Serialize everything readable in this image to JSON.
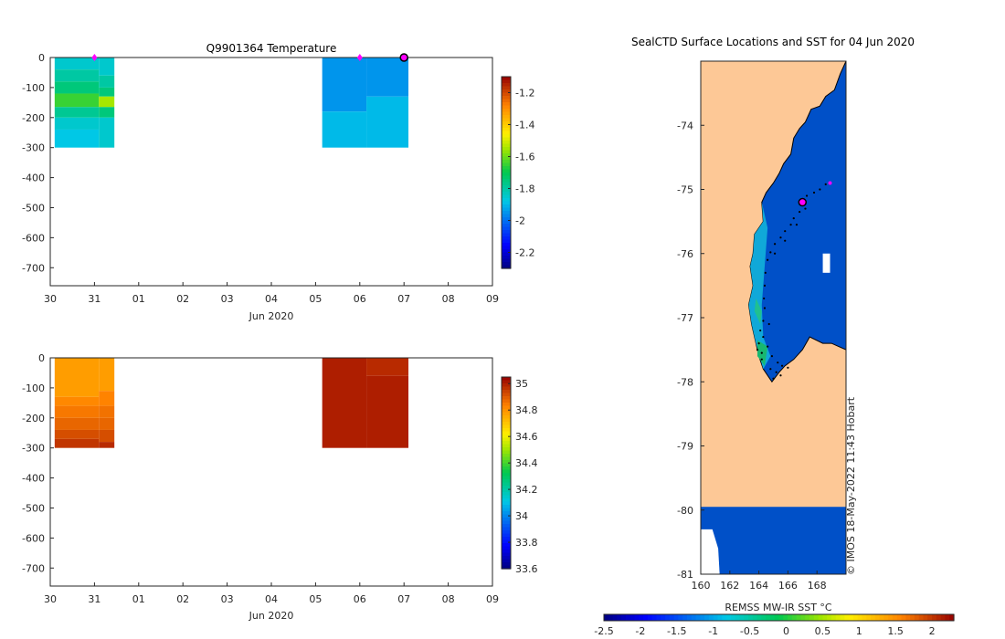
{
  "chart_data": [
    {
      "type": "heatmap",
      "title": "Q9901364  Temperature",
      "xlabel": "Jun 2020",
      "ylabel": "",
      "x_tick_labels": [
        "30",
        "31",
        "01",
        "02",
        "03",
        "04",
        "05",
        "06",
        "07",
        "08",
        "09"
      ],
      "x_range_days": [
        0,
        10
      ],
      "y_tick_labels": [
        "0",
        "-100",
        "-200",
        "-300",
        "-400",
        "-500",
        "-600",
        "-700"
      ],
      "ylim": [
        -760,
        0
      ],
      "colorbar": {
        "ticks": [
          "-1.2",
          "-1.4",
          "-1.6",
          "-1.8",
          "-2",
          "-2.2"
        ],
        "range": [
          -2.3,
          -1.1
        ]
      },
      "profiles": [
        {
          "x_start": 0.1,
          "x_end": 1.1,
          "layers": [
            [
              0,
              -40,
              -1.85
            ],
            [
              -40,
              -80,
              -1.8
            ],
            [
              -80,
              -120,
              -1.75
            ],
            [
              -120,
              -165,
              -1.65
            ],
            [
              -165,
              -200,
              -1.78
            ],
            [
              -200,
              -240,
              -1.85
            ],
            [
              -240,
              -300,
              -1.88
            ]
          ]
        },
        {
          "x_start": 1.1,
          "x_end": 1.45,
          "layers": [
            [
              0,
              -60,
              -1.85
            ],
            [
              -60,
              -100,
              -1.8
            ],
            [
              -100,
              -130,
              -1.75
            ],
            [
              -130,
              -165,
              -1.55
            ],
            [
              -165,
              -200,
              -1.75
            ],
            [
              -200,
              -300,
              -1.85
            ]
          ]
        },
        {
          "x_start": 6.15,
          "x_end": 7.15,
          "layers": [
            [
              0,
              -180,
              -1.95
            ],
            [
              -180,
              -300,
              -1.9
            ]
          ]
        },
        {
          "x_start": 7.15,
          "x_end": 8.1,
          "layers": [
            [
              0,
              -130,
              -1.95
            ],
            [
              -130,
              -300,
              -1.9
            ]
          ]
        }
      ],
      "markers": [
        {
          "x": 1.0,
          "y": 0,
          "kind": "magenta-diamond"
        },
        {
          "x": 7.0,
          "y": 0,
          "kind": "magenta-diamond"
        },
        {
          "x": 8.0,
          "y": 0,
          "kind": "current-position"
        }
      ]
    },
    {
      "type": "heatmap",
      "title": "",
      "xlabel": "Jun 2020",
      "ylabel": "",
      "x_tick_labels": [
        "30",
        "31",
        "01",
        "02",
        "03",
        "04",
        "05",
        "06",
        "07",
        "08",
        "09"
      ],
      "x_range_days": [
        0,
        10
      ],
      "y_tick_labels": [
        "0",
        "-100",
        "-200",
        "-300",
        "-400",
        "-500",
        "-600",
        "-700"
      ],
      "ylim": [
        -760,
        0
      ],
      "colorbar": {
        "ticks": [
          "35",
          "34.8",
          "34.6",
          "34.4",
          "34.2",
          "34",
          "33.8",
          "33.6"
        ],
        "range": [
          33.6,
          35.05
        ]
      },
      "profiles": [
        {
          "x_start": 0.1,
          "x_end": 1.1,
          "layers": [
            [
              0,
              -130,
              34.78
            ],
            [
              -130,
              -160,
              34.82
            ],
            [
              -160,
              -200,
              34.85
            ],
            [
              -200,
              -240,
              34.88
            ],
            [
              -240,
              -270,
              34.92
            ],
            [
              -270,
              -300,
              34.96
            ]
          ]
        },
        {
          "x_start": 1.1,
          "x_end": 1.45,
          "layers": [
            [
              0,
              -110,
              34.78
            ],
            [
              -110,
              -160,
              34.83
            ],
            [
              -160,
              -200,
              34.86
            ],
            [
              -200,
              -240,
              34.88
            ],
            [
              -240,
              -280,
              34.92
            ],
            [
              -280,
              -300,
              34.98
            ]
          ]
        },
        {
          "x_start": 6.15,
          "x_end": 7.15,
          "layers": [
            [
              0,
              -300,
              35.0
            ]
          ]
        },
        {
          "x_start": 7.15,
          "x_end": 8.1,
          "layers": [
            [
              0,
              -60,
              34.98
            ],
            [
              -60,
              -300,
              35.0
            ]
          ]
        }
      ]
    },
    {
      "type": "heatmap",
      "title": "SealCTD Surface Locations and SST for 04 Jun 2020",
      "xlabel": "",
      "ylabel": "",
      "x_tick_labels": [
        "160",
        "162",
        "164",
        "166",
        "168"
      ],
      "xlim": [
        160,
        170
      ],
      "y_tick_labels": [
        "-74",
        "-75",
        "-76",
        "-77",
        "-78",
        "-79",
        "-80",
        "-81"
      ],
      "ylim": [
        -81,
        -73
      ],
      "colorbar": {
        "label": "REMSS MW-IR SST °C",
        "ticks": [
          "-2.5",
          "-2",
          "-1.5",
          "-1",
          "-0.5",
          "0",
          "0.5",
          "1",
          "1.5",
          "2"
        ],
        "range": [
          -2.5,
          2.3
        ]
      },
      "current_position": {
        "lon": 167.0,
        "lat": -75.2
      },
      "last_fix": {
        "lon": 168.9,
        "lat": -74.9
      },
      "track_points": [
        [
          168.6,
          -74.92
        ],
        [
          168.2,
          -75.0
        ],
        [
          167.8,
          -75.05
        ],
        [
          167.3,
          -75.1
        ],
        [
          166.8,
          -75.35
        ],
        [
          166.4,
          -75.45
        ],
        [
          166.2,
          -75.55
        ],
        [
          165.8,
          -75.65
        ],
        [
          165.5,
          -75.75
        ],
        [
          165.1,
          -75.85
        ],
        [
          164.8,
          -75.98
        ],
        [
          164.6,
          -76.1
        ],
        [
          164.45,
          -76.3
        ],
        [
          164.4,
          -76.5
        ],
        [
          164.35,
          -76.7
        ],
        [
          164.4,
          -76.85
        ],
        [
          164.3,
          -77.05
        ],
        [
          164.1,
          -77.2
        ],
        [
          164.3,
          -77.3
        ],
        [
          164.6,
          -77.45
        ],
        [
          164.0,
          -77.4
        ],
        [
          164.2,
          -77.55
        ],
        [
          164.9,
          -77.6
        ],
        [
          165.3,
          -77.7
        ],
        [
          165.6,
          -77.75
        ],
        [
          165.2,
          -77.85
        ],
        [
          164.8,
          -77.8
        ],
        [
          165.0,
          -77.95
        ],
        [
          165.5,
          -77.9
        ],
        [
          166.0,
          -77.78
        ],
        [
          164.2,
          -77.65
        ],
        [
          163.9,
          -77.5
        ],
        [
          164.7,
          -77.1
        ],
        [
          165.1,
          -76.0
        ],
        [
          165.8,
          -75.8
        ],
        [
          166.6,
          -75.55
        ],
        [
          167.2,
          -75.3
        ]
      ]
    }
  ],
  "watermark": "© IMOS 18-May-2022 11:43 Hobart",
  "colors": {
    "land": "#fdc896",
    "sea": "#0050c8",
    "magenta": "#ff00ff"
  }
}
